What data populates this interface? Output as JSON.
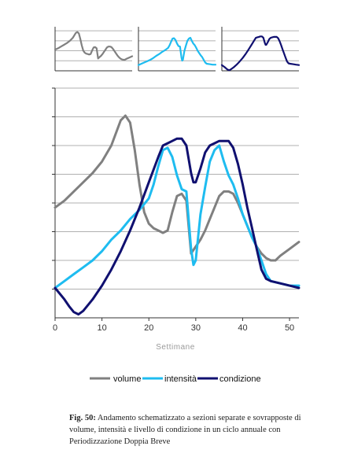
{
  "chart_data": {
    "type": "line",
    "xlabel": "Settimane",
    "xlim": [
      0,
      52
    ],
    "ylim": [
      0,
      10
    ],
    "xticks": [
      0,
      10,
      20,
      30,
      40,
      50
    ],
    "grid": true,
    "legend": "bottom",
    "series": [
      {
        "name": "volume",
        "color": "#808080",
        "points": [
          [
            0,
            4.8
          ],
          [
            2,
            5.1
          ],
          [
            4,
            5.5
          ],
          [
            6,
            5.9
          ],
          [
            8,
            6.3
          ],
          [
            10,
            6.8
          ],
          [
            12,
            7.5
          ],
          [
            14,
            8.6
          ],
          [
            15,
            8.8
          ],
          [
            16,
            8.5
          ],
          [
            17,
            7.3
          ],
          [
            18,
            5.8
          ],
          [
            19,
            4.6
          ],
          [
            20,
            4.1
          ],
          [
            21,
            3.9
          ],
          [
            22,
            3.8
          ],
          [
            23,
            3.7
          ],
          [
            24,
            3.8
          ],
          [
            25,
            4.6
          ],
          [
            26,
            5.3
          ],
          [
            27,
            5.4
          ],
          [
            28,
            5.1
          ],
          [
            29,
            2.8
          ],
          [
            30,
            3.1
          ],
          [
            31,
            3.4
          ],
          [
            32,
            3.8
          ],
          [
            33,
            4.3
          ],
          [
            34,
            4.8
          ],
          [
            35,
            5.3
          ],
          [
            36,
            5.5
          ],
          [
            37,
            5.5
          ],
          [
            38,
            5.4
          ],
          [
            39,
            5.0
          ],
          [
            40,
            4.5
          ],
          [
            41,
            4.0
          ],
          [
            42,
            3.5
          ],
          [
            43,
            3.1
          ],
          [
            44,
            2.8
          ],
          [
            45,
            2.6
          ],
          [
            46,
            2.5
          ],
          [
            47,
            2.5
          ],
          [
            48,
            2.7
          ],
          [
            50,
            3.0
          ],
          [
            52,
            3.3
          ]
        ]
      },
      {
        "name": "intensità",
        "color": "#1ebcf0",
        "points": [
          [
            0,
            1.3
          ],
          [
            2,
            1.6
          ],
          [
            4,
            1.9
          ],
          [
            6,
            2.2
          ],
          [
            8,
            2.5
          ],
          [
            10,
            2.9
          ],
          [
            12,
            3.4
          ],
          [
            14,
            3.8
          ],
          [
            16,
            4.3
          ],
          [
            18,
            4.7
          ],
          [
            20,
            5.2
          ],
          [
            21,
            5.8
          ],
          [
            22,
            6.6
          ],
          [
            23,
            7.3
          ],
          [
            24,
            7.4
          ],
          [
            25,
            7.0
          ],
          [
            26,
            6.2
          ],
          [
            27,
            5.6
          ],
          [
            28,
            5.5
          ],
          [
            29,
            3.0
          ],
          [
            29.5,
            2.3
          ],
          [
            30,
            2.5
          ],
          [
            31,
            4.5
          ],
          [
            32,
            5.7
          ],
          [
            33,
            6.8
          ],
          [
            34,
            7.3
          ],
          [
            35,
            7.5
          ],
          [
            36,
            6.8
          ],
          [
            37,
            6.2
          ],
          [
            38,
            5.8
          ],
          [
            39,
            5.2
          ],
          [
            40,
            4.5
          ],
          [
            41,
            4.0
          ],
          [
            42,
            3.5
          ],
          [
            43,
            3.1
          ],
          [
            44,
            2.5
          ],
          [
            45,
            1.9
          ],
          [
            46,
            1.6
          ],
          [
            48,
            1.5
          ],
          [
            50,
            1.4
          ],
          [
            52,
            1.4
          ]
        ]
      },
      {
        "name": "condizione",
        "color": "#101070",
        "points": [
          [
            0,
            1.3
          ],
          [
            2,
            0.8
          ],
          [
            3,
            0.5
          ],
          [
            4,
            0.25
          ],
          [
            5,
            0.15
          ],
          [
            6,
            0.3
          ],
          [
            8,
            0.8
          ],
          [
            10,
            1.4
          ],
          [
            12,
            2.1
          ],
          [
            14,
            2.9
          ],
          [
            16,
            3.8
          ],
          [
            18,
            4.8
          ],
          [
            20,
            5.9
          ],
          [
            22,
            7.0
          ],
          [
            23,
            7.5
          ],
          [
            24,
            7.6
          ],
          [
            25,
            7.7
          ],
          [
            26,
            7.8
          ],
          [
            27,
            7.8
          ],
          [
            28,
            7.5
          ],
          [
            29,
            6.3
          ],
          [
            29.5,
            5.9
          ],
          [
            30,
            5.9
          ],
          [
            31,
            6.5
          ],
          [
            32,
            7.2
          ],
          [
            33,
            7.5
          ],
          [
            34,
            7.6
          ],
          [
            35,
            7.7
          ],
          [
            36,
            7.7
          ],
          [
            37,
            7.7
          ],
          [
            38,
            7.4
          ],
          [
            39,
            6.7
          ],
          [
            40,
            5.8
          ],
          [
            41,
            4.8
          ],
          [
            42,
            3.9
          ],
          [
            43,
            3.0
          ],
          [
            44,
            2.1
          ],
          [
            45,
            1.7
          ],
          [
            46,
            1.6
          ],
          [
            48,
            1.5
          ],
          [
            50,
            1.4
          ],
          [
            52,
            1.3
          ]
        ]
      }
    ]
  },
  "caption": {
    "label": "Fig. 50:",
    "text": " Andamento schematizzato a sezioni separate e sovrapposte di volume, intensità e livello di condizione in un ciclo annuale con Periodizzazione Doppia Breve"
  }
}
